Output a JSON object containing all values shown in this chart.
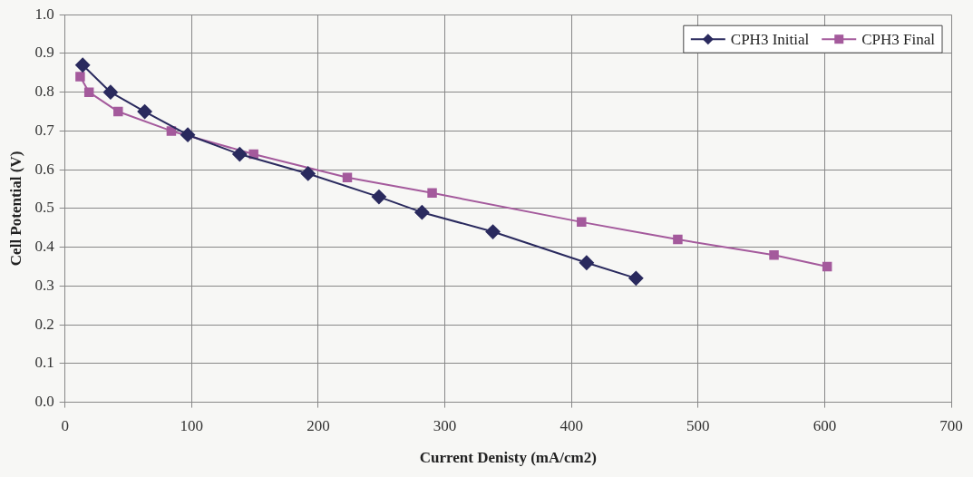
{
  "chart_data": {
    "type": "line",
    "xlabel": "Current Denisty (mA/cm2)",
    "ylabel": "Cell Potential (V)",
    "series": [
      {
        "name": "CPH3 Initial",
        "color": "#2a2a5e",
        "marker": "diamond",
        "x": [
          14,
          36,
          63,
          97,
          138,
          192,
          248,
          282,
          338,
          412,
          451
        ],
        "values": [
          0.87,
          0.8,
          0.75,
          0.69,
          0.64,
          0.59,
          0.53,
          0.49,
          0.44,
          0.36,
          0.32
        ]
      },
      {
        "name": "CPH3 Final",
        "color": "#a45a9c",
        "marker": "square",
        "x": [
          12,
          19,
          42,
          84,
          149,
          223,
          290,
          408,
          484,
          560,
          602
        ],
        "values": [
          0.84,
          0.8,
          0.75,
          0.7,
          0.64,
          0.58,
          0.54,
          0.465,
          0.42,
          0.38,
          0.35
        ]
      }
    ],
    "xlim": [
      0,
      700
    ],
    "xticks": [
      0,
      100,
      200,
      300,
      400,
      500,
      600,
      700
    ],
    "ylim": [
      0,
      1
    ],
    "yticks": [
      {
        "value": 0,
        "label": "0.0"
      },
      {
        "value": 0.1,
        "label": "0.1"
      },
      {
        "value": 0.2,
        "label": "0.2"
      },
      {
        "value": 0.3,
        "label": "0.3"
      },
      {
        "value": 0.4,
        "label": "0.4"
      },
      {
        "value": 0.5,
        "label": "0.5"
      },
      {
        "value": 0.6,
        "label": "0.6"
      },
      {
        "value": 0.7,
        "label": "0.7"
      },
      {
        "value": 0.8,
        "label": "0.8"
      },
      {
        "value": 0.9,
        "label": "0.9"
      },
      {
        "value": 1,
        "label": "1.0"
      }
    ],
    "grid": true,
    "legend": "top right",
    "line_style": "solid"
  }
}
